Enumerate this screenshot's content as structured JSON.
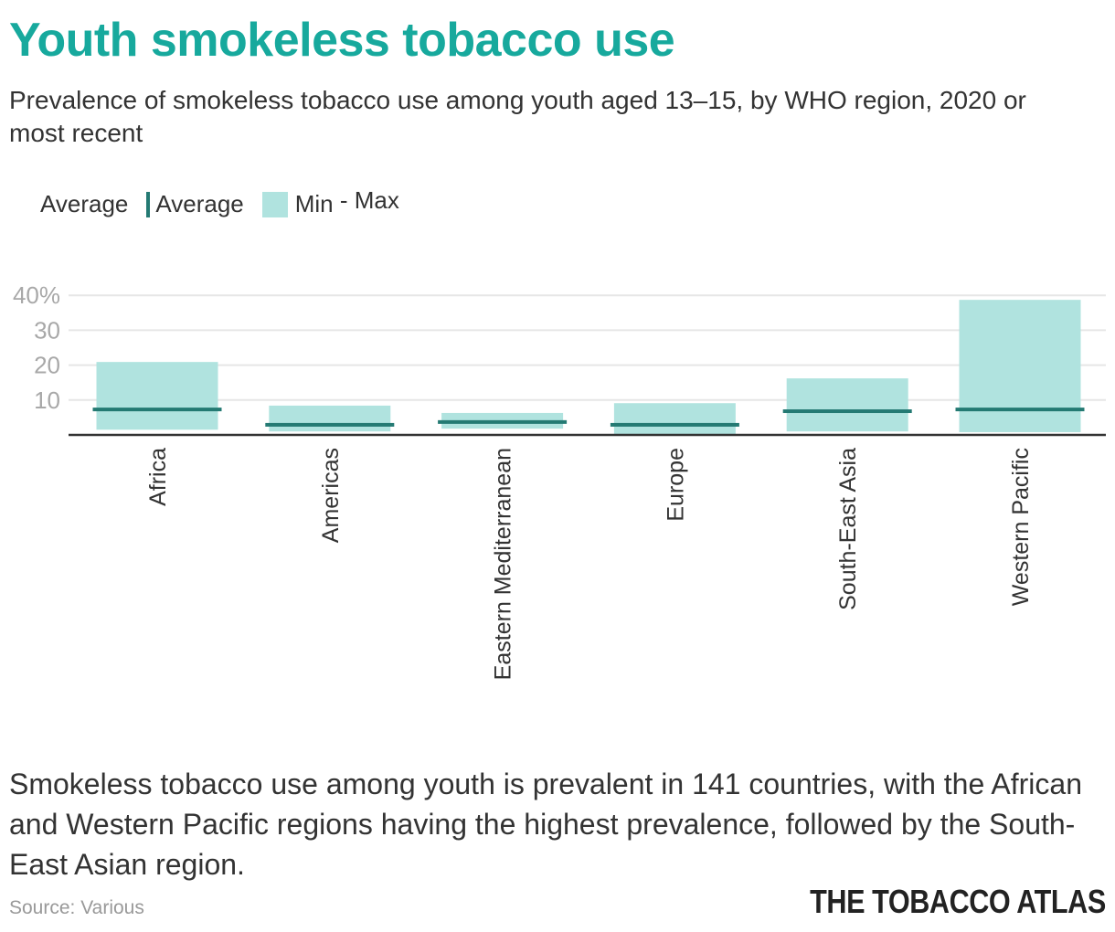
{
  "title": "Youth smokeless tobacco use",
  "subtitle": "Prevalence of smokeless tobacco use among youth aged 13–15, by WHO region, 2020 or most recent",
  "legend": {
    "heading": "Average",
    "average_label": "Average",
    "range_label": "Min",
    "range_label_suffix": "- Max"
  },
  "caption": "Smokeless tobacco use among youth is prevalent in 141 countries, with the African and Western Pacific regions having the highest prevalence, followed by the South-East Asian region.",
  "source": "Source: Various",
  "logo": "THE TOBACCO ATLAS",
  "colors": {
    "title": "#17a99d",
    "range": "#b0e3df",
    "average": "#247a73"
  },
  "chart_data": {
    "type": "bar",
    "subtype": "range-with-average",
    "categories": [
      "Africa",
      "Americas",
      "Eastern Mediterranean",
      "Europe",
      "South-East Asia",
      "Western Pacific"
    ],
    "series": [
      {
        "name": "Min",
        "values": [
          1.5,
          1.0,
          1.8,
          0.2,
          1.0,
          0.8
        ]
      },
      {
        "name": "Max",
        "values": [
          20.9,
          8.4,
          6.3,
          9.1,
          16.2,
          38.7
        ]
      },
      {
        "name": "Average",
        "values": [
          7.3,
          2.9,
          3.7,
          2.9,
          6.8,
          7.3
        ]
      }
    ],
    "ylim": [
      0,
      40
    ],
    "yticks": [
      10,
      20,
      30,
      40
    ],
    "ytick_labels": [
      "10",
      "20",
      "30",
      "40%"
    ],
    "grid": true,
    "legend_position": "top-left"
  }
}
